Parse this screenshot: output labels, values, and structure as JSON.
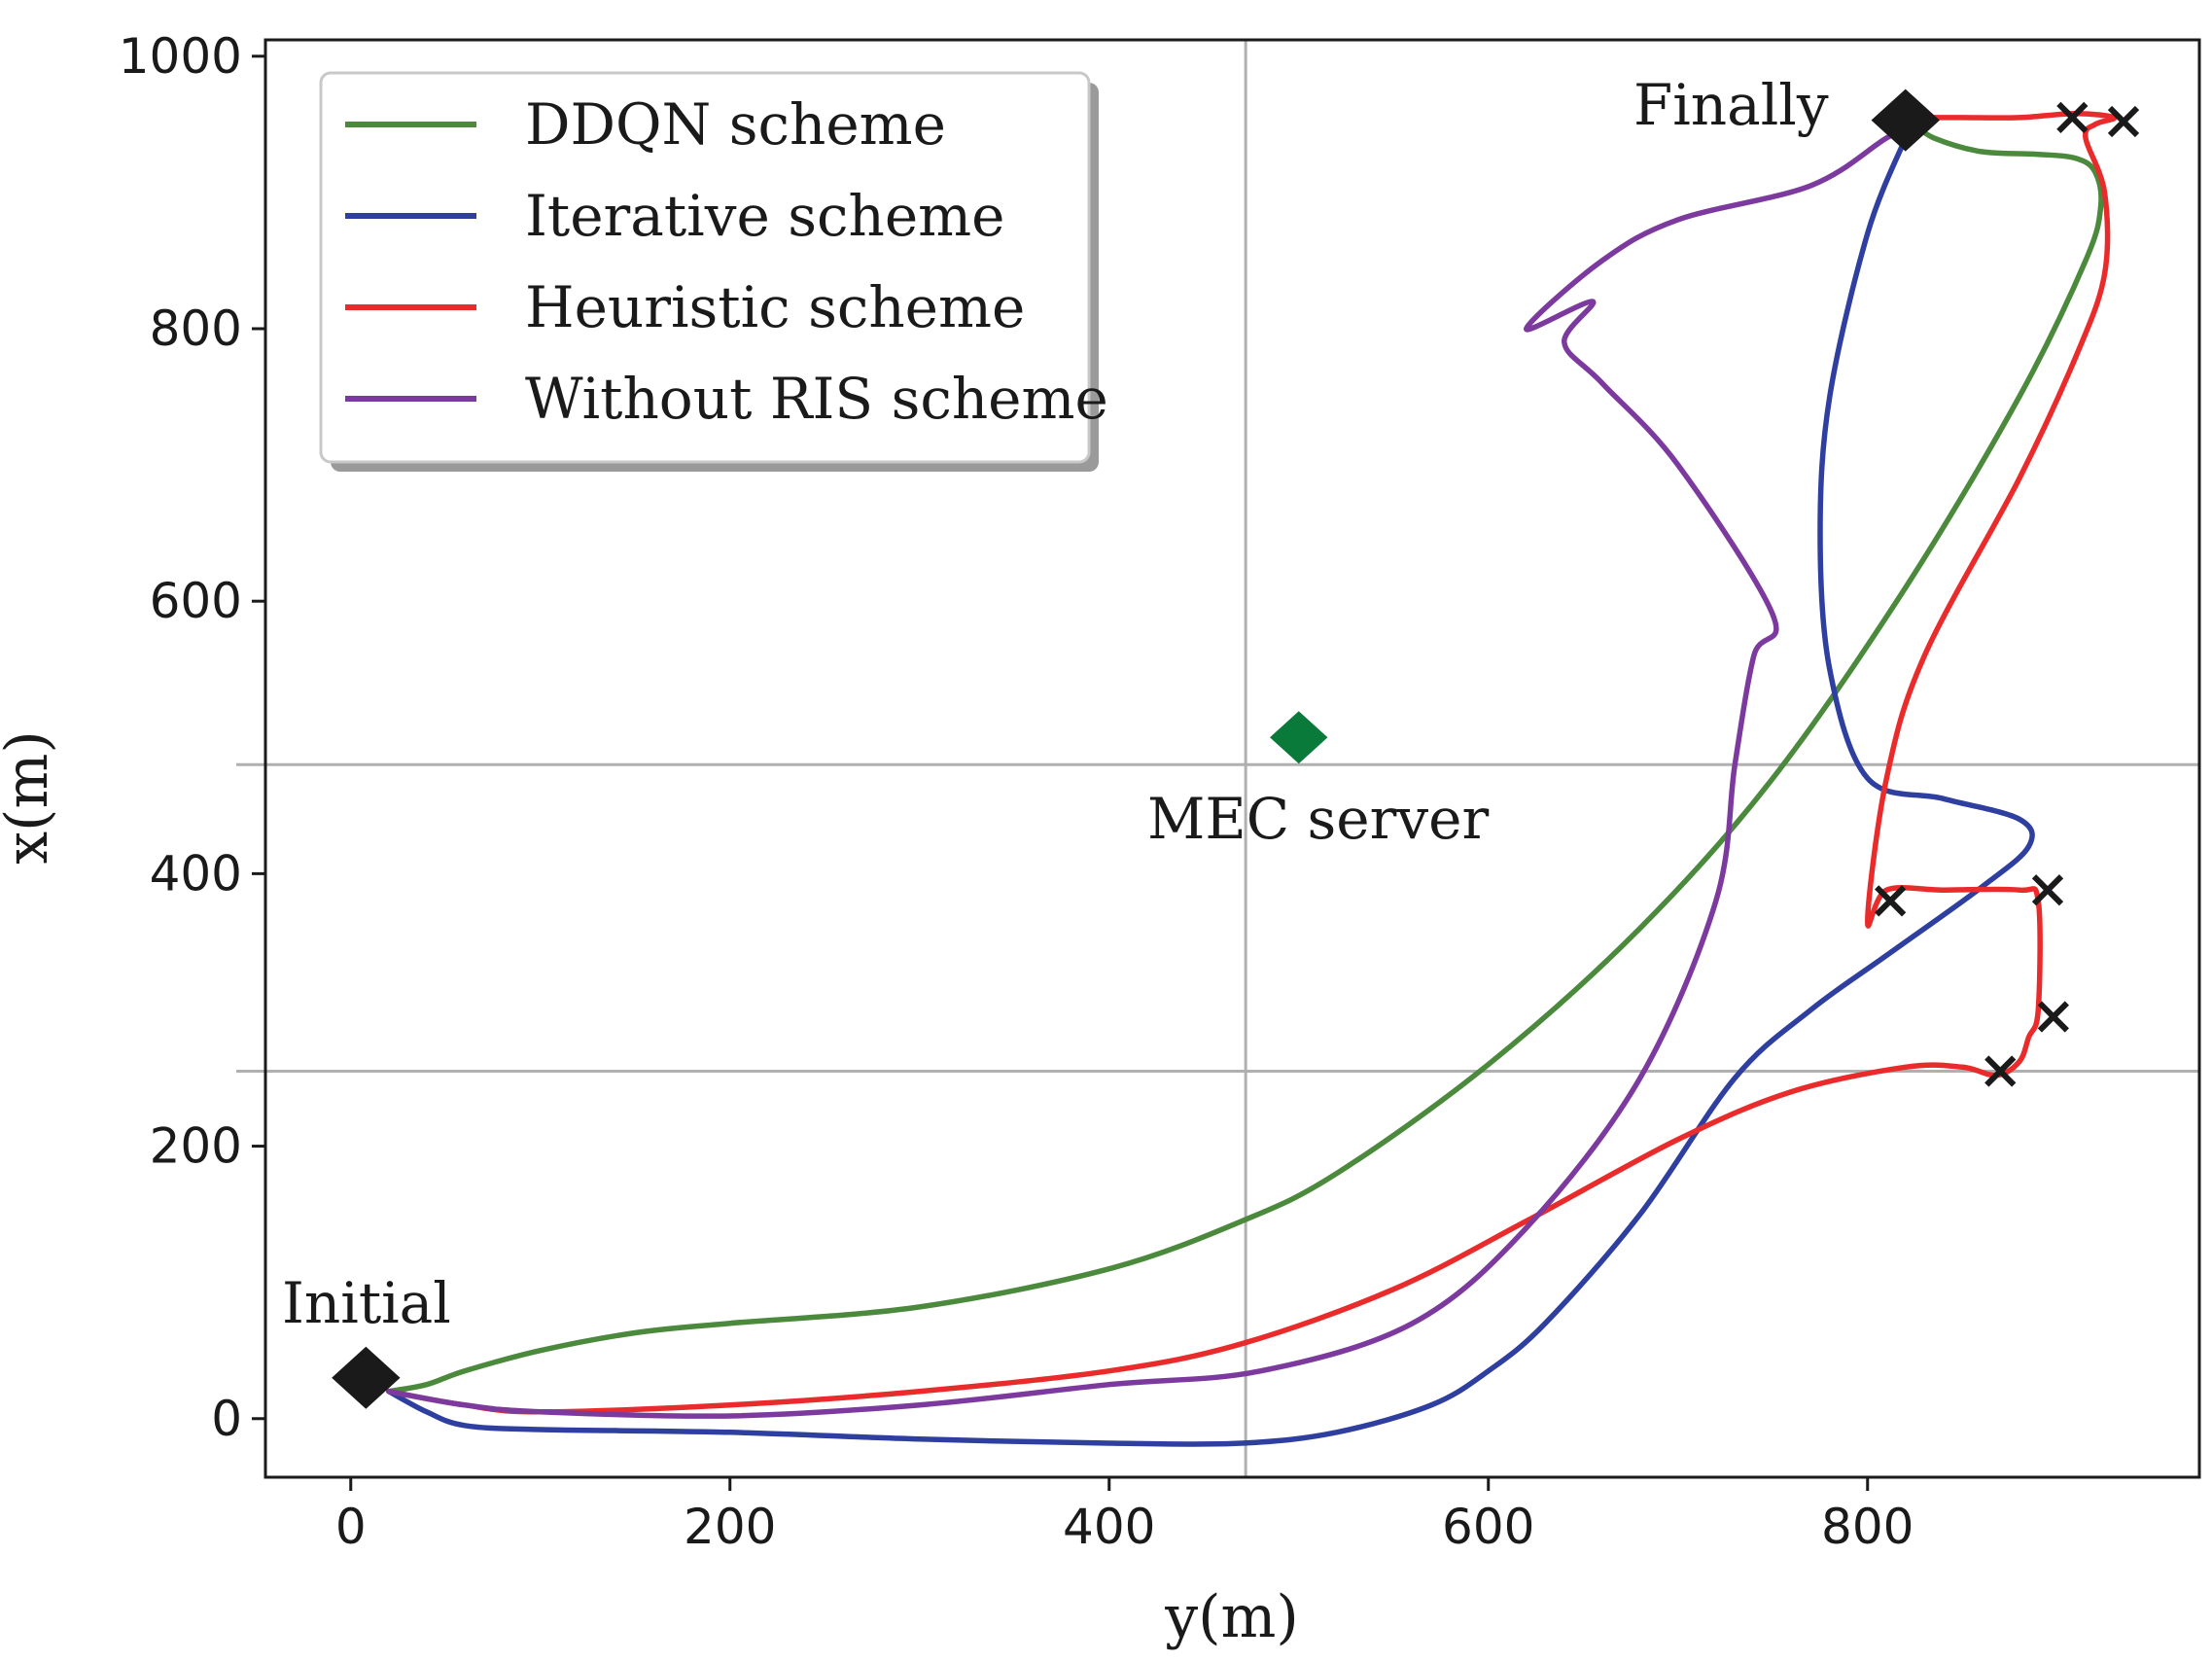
{
  "chart_data": {
    "type": "line",
    "title": "",
    "xlabel": "y(m)",
    "ylabel": "x(m)",
    "xlim": [
      -45,
      975
    ],
    "ylim": [
      -43,
      1012
    ],
    "xticks": [
      0,
      200,
      400,
      600,
      800
    ],
    "yticks": [
      0,
      200,
      400,
      600,
      800,
      1000
    ],
    "grid": false,
    "legend_position": "top-left",
    "series": [
      {
        "name": "DDQN scheme",
        "color": "#4b8a3c",
        "x": [
          20,
          40,
          60,
          100,
          150,
          200,
          300,
          400,
          470,
          520,
          600,
          680,
          750,
          820,
          880,
          915,
          923,
          920,
          910,
          890,
          860,
          835,
          825
        ],
        "y": [
          20,
          25,
          35,
          50,
          63,
          70,
          82,
          110,
          145,
          180,
          260,
          360,
          470,
          610,
          750,
          850,
          890,
          915,
          925,
          928,
          930,
          940,
          950
        ]
      },
      {
        "name": "Iterative scheme",
        "color": "#2e3fa0",
        "x": [
          20,
          40,
          60,
          100,
          200,
          300,
          400,
          470,
          520,
          570,
          600,
          630,
          680,
          730,
          770,
          810,
          860,
          885,
          880,
          840,
          800,
          780,
          775,
          780,
          800,
          820
        ],
        "y": [
          20,
          5,
          -5,
          -8,
          -10,
          -15,
          -18,
          -18,
          -10,
          10,
          35,
          70,
          150,
          250,
          300,
          340,
          390,
          420,
          440,
          455,
          470,
          550,
          650,
          750,
          870,
          940
        ]
      },
      {
        "name": "Heuristic scheme",
        "color": "#ea2b2b",
        "x": [
          20,
          60,
          100,
          200,
          300,
          400,
          470,
          550,
          620,
          700,
          760,
          820,
          850,
          868,
          880,
          885,
          890,
          890,
          880,
          840,
          810,
          800,
          810,
          830,
          880,
          910,
          925,
          925,
          915,
          920,
          930,
          910,
          880,
          850,
          830
        ],
        "y": [
          20,
          10,
          5,
          10,
          20,
          35,
          55,
          95,
          145,
          205,
          240,
          258,
          258,
          252,
          262,
          280,
          300,
          380,
          388,
          388,
          388,
          365,
          470,
          560,
          690,
          780,
          840,
          900,
          940,
          950,
          955,
          958,
          955,
          955,
          955
        ]
      },
      {
        "name": "Without RIS scheme",
        "color": "#7d3a9e",
        "x": [
          20,
          60,
          100,
          200,
          300,
          400,
          480,
          560,
          620,
          680,
          720,
          730,
          740,
          750,
          700,
          660,
          640,
          655,
          620,
          660,
          700,
          770,
          810,
          825
        ],
        "y": [
          20,
          10,
          5,
          2,
          10,
          25,
          35,
          70,
          140,
          250,
          380,
          480,
          560,
          590,
          700,
          760,
          790,
          820,
          800,
          850,
          880,
          905,
          940,
          950
        ]
      }
    ],
    "markers": {
      "initial": {
        "x": 8,
        "y": 30,
        "label": "Initial"
      },
      "final": {
        "x": 820,
        "y": 953,
        "label": "Finally"
      },
      "mec_server": {
        "x": 500,
        "y": 500,
        "label": "MEC server",
        "color": "#0a7a3a"
      },
      "x_marks": [
        {
          "x": 908,
          "y": 955
        },
        {
          "x": 935,
          "y": 952
        },
        {
          "x": 812,
          "y": 380
        },
        {
          "x": 895,
          "y": 388
        },
        {
          "x": 898,
          "y": 295
        },
        {
          "x": 870,
          "y": 255
        }
      ]
    },
    "reference_lines": {
      "vertical_x": 472,
      "horizontal_y": [
        480,
        255
      ]
    }
  }
}
